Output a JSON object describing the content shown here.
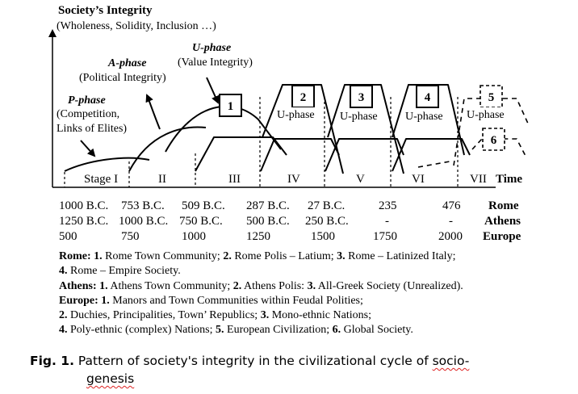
{
  "y_axis": {
    "title": "Society’s Integrity",
    "subtitle": "(Wholeness, Solidity, Inclusion …)"
  },
  "phases": {
    "p_phase": {
      "name": "P-phase",
      "desc1": "(Competition,",
      "desc2": "Links of Elites)"
    },
    "a_phase": {
      "name": "A-phase",
      "desc": "(Political Integrity)"
    },
    "u_phase": {
      "name": "U-phase",
      "desc": "(Value Integrity)"
    }
  },
  "boxes": [
    "1",
    "2",
    "3",
    "4",
    "5",
    "6"
  ],
  "u_phase_label": "U-phase",
  "stages": [
    "Stage I",
    "II",
    "III",
    "IV",
    "V",
    "VI",
    "VII"
  ],
  "time_label": "Time",
  "timeline": {
    "rows": [
      {
        "label": "Rome",
        "values": [
          "1000 B.C.",
          "753 B.C.",
          "509 B.C.",
          "287 B.C.",
          "27 B.C.",
          "235",
          "476"
        ]
      },
      {
        "label": "Athens",
        "values": [
          "1250 B.C.",
          "1000 B.C.",
          "750 B.C.",
          "500 B.C.",
          "250 B.C.",
          "-",
          "-"
        ]
      },
      {
        "label": "Europe",
        "values": [
          "500",
          "750",
          "1000",
          "1250",
          "1500",
          "1750",
          "2000"
        ]
      }
    ]
  },
  "legend": {
    "rome_head": "Rome:",
    "rome_1n": "1.",
    "rome_1": " Rome Town Community; ",
    "rome_2n": "2.",
    "rome_2": " Rome Polis – Latium; ",
    "rome_3n": "3.",
    "rome_3": " Rome – Latinized Italy;",
    "rome_4n": "4.",
    "rome_4": " Rome – Empire Society.",
    "athens_head": "Athens:",
    "athens_1n": "1.",
    "athens_1": " Athens Town Community; ",
    "athens_2n": "2.",
    "athens_2": " Athens Polis: ",
    "athens_3n": "3.",
    "athens_3": " All-Greek Society (Unrealized).",
    "europe_head": "Europe:",
    "europe_1n": "1.",
    "europe_1": " Manors and Town Communities within Feudal Polities;",
    "europe_2n": "2.",
    "europe_2": " Duchies, Principalities, Town’ Republics; ",
    "europe_3n": "3.",
    "europe_3": " Mono-ethnic Nations;",
    "europe_4n": "4.",
    "europe_4": " Poly-ethnic (complex) Nations; ",
    "europe_5n": "5.",
    "europe_5": " European Civilization; ",
    "europe_6n": "6.",
    "europe_6": " Global Society."
  },
  "caption": {
    "label": "Fig. 1.",
    "text": " Pattern of society's integrity in the civilizational cycle of ",
    "word1": "socio-",
    "word2": "genesis"
  }
}
